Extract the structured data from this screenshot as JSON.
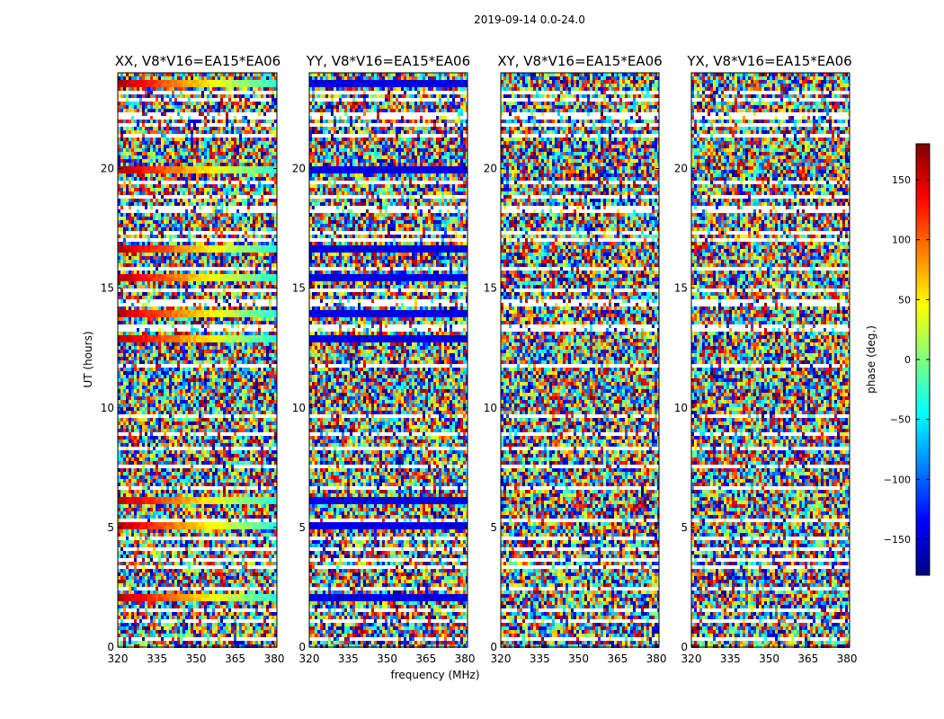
{
  "figure": {
    "suptitle": "2019-09-14 0.0-24.0"
  },
  "chart_data": {
    "type": "heatmap",
    "title": "2019-09-14 0.0-24.0",
    "xlabel": "frequency (MHz)",
    "ylabel": "UT (hours)",
    "xlim": [
      320,
      381
    ],
    "ylim": [
      0,
      24
    ],
    "x_ticks": [
      320,
      335,
      350,
      365,
      380
    ],
    "y_ticks": [
      0,
      5,
      10,
      15,
      20
    ],
    "colorbar": {
      "label": "phase (deg.)",
      "range": [
        -180,
        180
      ],
      "ticks": [
        150,
        100,
        50,
        0,
        -50,
        -100,
        -150
      ],
      "tick_labels": [
        "150",
        "100",
        "50",
        "0",
        "−50",
        "−100",
        "−150"
      ],
      "colormap": "jet"
    },
    "panels": [
      {
        "title": "XX, V8*V16=EA15*EA06",
        "coherent_bands_ut": [
          23.6,
          20.0,
          16.6,
          15.5,
          14.0,
          12.9,
          6.1,
          5.1,
          2.1
        ],
        "band_phase": "red-to-cyan ramp across frequency"
      },
      {
        "title": "YY, V8*V16=EA15*EA06",
        "coherent_bands_ut": [
          23.6,
          20.0,
          16.6,
          15.5,
          14.0,
          12.9,
          6.1,
          5.1,
          2.1
        ],
        "band_phase": "approx -150 deg (blue)"
      },
      {
        "title": "XY, V8*V16=EA15*EA06",
        "coherent_bands_ut": [],
        "band_phase": "noise"
      },
      {
        "title": "YX, V8*V16=EA15*EA06",
        "coherent_bands_ut": [],
        "band_phase": "noise"
      }
    ],
    "flagged_gaps_ut": [
      0.35,
      1.1,
      1.55,
      2.4,
      3.3,
      3.65,
      4.1,
      4.5,
      5.35,
      6.6,
      7.5,
      8.3,
      8.85,
      9.6,
      11.8,
      13.35,
      14.4,
      14.95,
      15.85,
      17.0,
      17.35,
      18.3,
      18.8,
      19.4,
      21.4,
      21.85,
      22.2,
      22.9,
      23.2
    ]
  }
}
